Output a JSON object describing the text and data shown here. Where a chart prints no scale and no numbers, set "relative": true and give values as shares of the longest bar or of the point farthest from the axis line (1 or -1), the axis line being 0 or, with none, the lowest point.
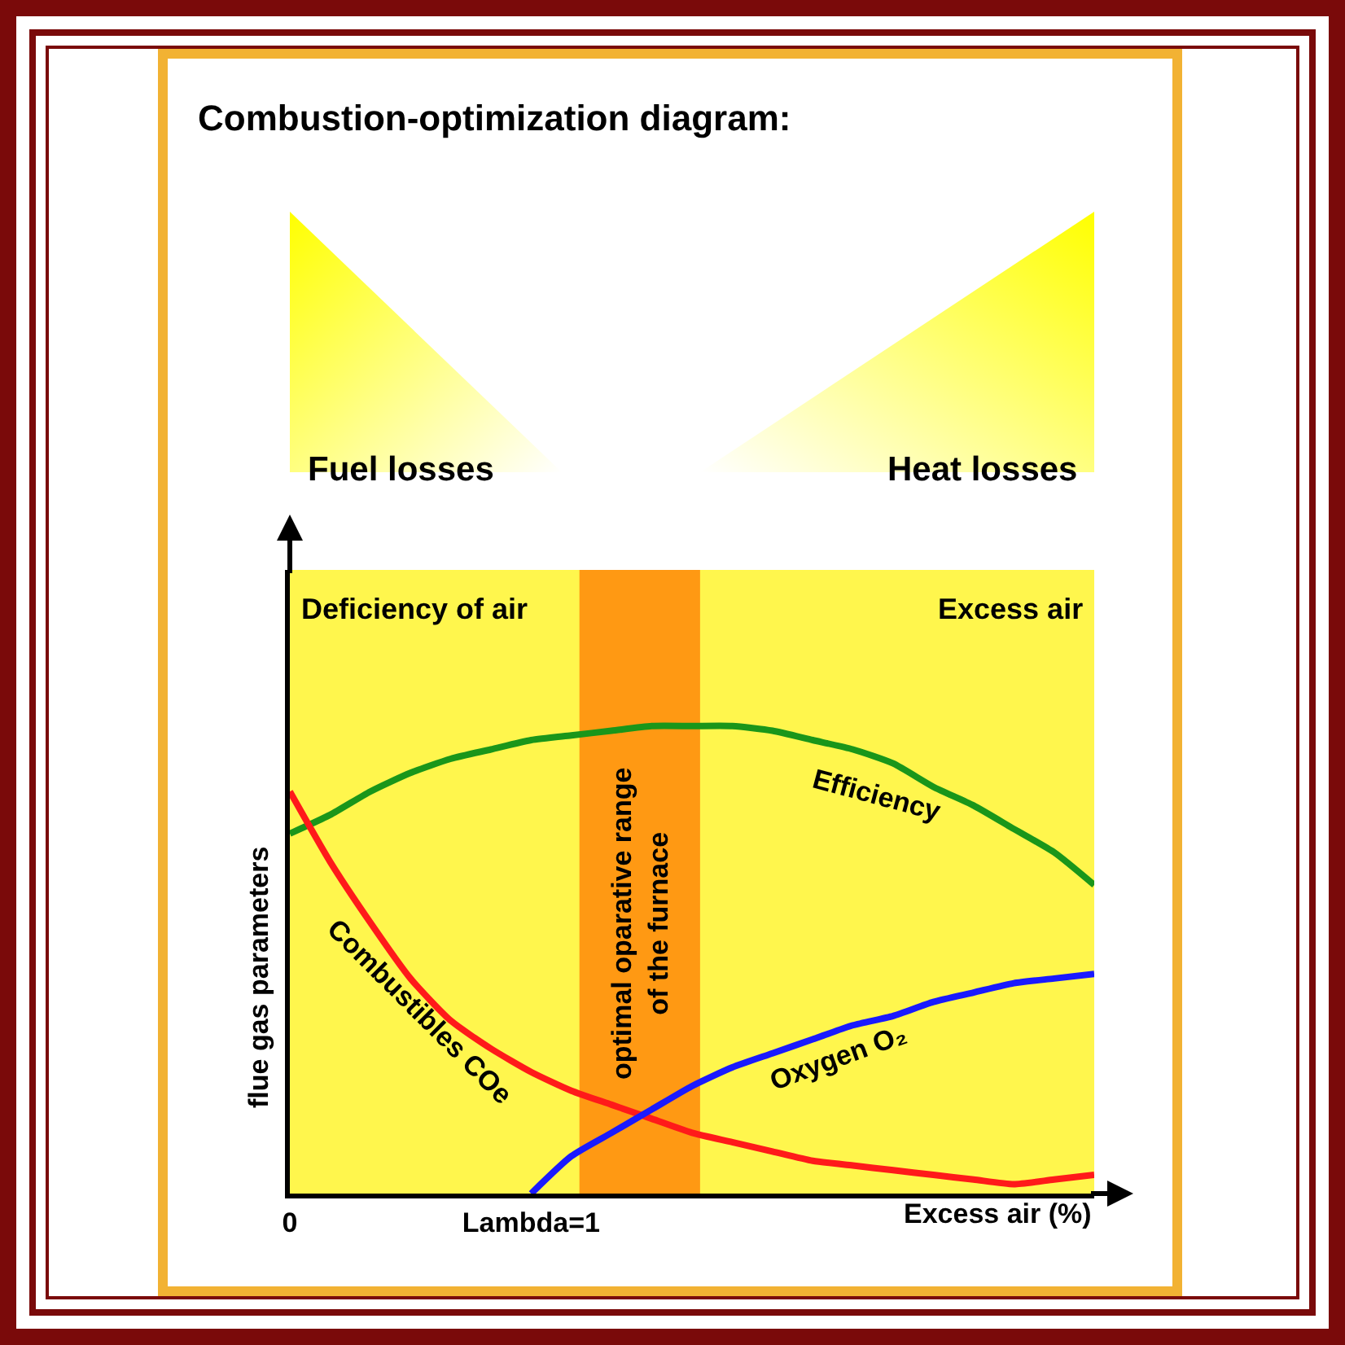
{
  "chart_data": {
    "type": "line",
    "title": "Combustion-optimization diagram:",
    "xlabel": "Excess air (%)",
    "ylabel": "flue gas parameters",
    "relative": true,
    "categories": [
      "0",
      null,
      null,
      null,
      null,
      null,
      "Lambda=1",
      null,
      null,
      null,
      null,
      null,
      null,
      null,
      null,
      null,
      null,
      null,
      null,
      null,
      null
    ],
    "grid": false,
    "legend": false,
    "marker": "none",
    "line_style": "solid",
    "series": [
      {
        "name": "Efficiency",
        "color": "#1a961a",
        "values": [
          0.77,
          0.81,
          0.86,
          0.9,
          0.93,
          0.95,
          0.97,
          0.98,
          0.99,
          1.0,
          1.0,
          1.0,
          0.99,
          0.97,
          0.95,
          0.92,
          0.87,
          0.83,
          0.78,
          0.73,
          0.66
        ]
      },
      {
        "name": "Combustibles COe",
        "color": "#ff1a1a",
        "values": [
          0.86,
          0.71,
          0.58,
          0.46,
          0.37,
          0.31,
          0.26,
          0.22,
          0.19,
          0.16,
          0.13,
          0.11,
          0.09,
          0.07,
          0.06,
          0.05,
          0.04,
          0.03,
          0.02,
          0.03,
          0.04
        ]
      },
      {
        "name": "Oxygen O₂",
        "color": "#1a1aff",
        "values": [
          null,
          null,
          null,
          null,
          null,
          null,
          0,
          0.08,
          0.13,
          0.18,
          0.23,
          0.27,
          0.3,
          0.33,
          0.36,
          0.38,
          0.41,
          0.43,
          0.45,
          0.46,
          0.47
        ]
      }
    ],
    "annotations": [
      "Deficiency of air",
      "Excess air",
      "Fuel losses",
      "Heat losses",
      "optimal oparative range of the furnace"
    ]
  }
}
